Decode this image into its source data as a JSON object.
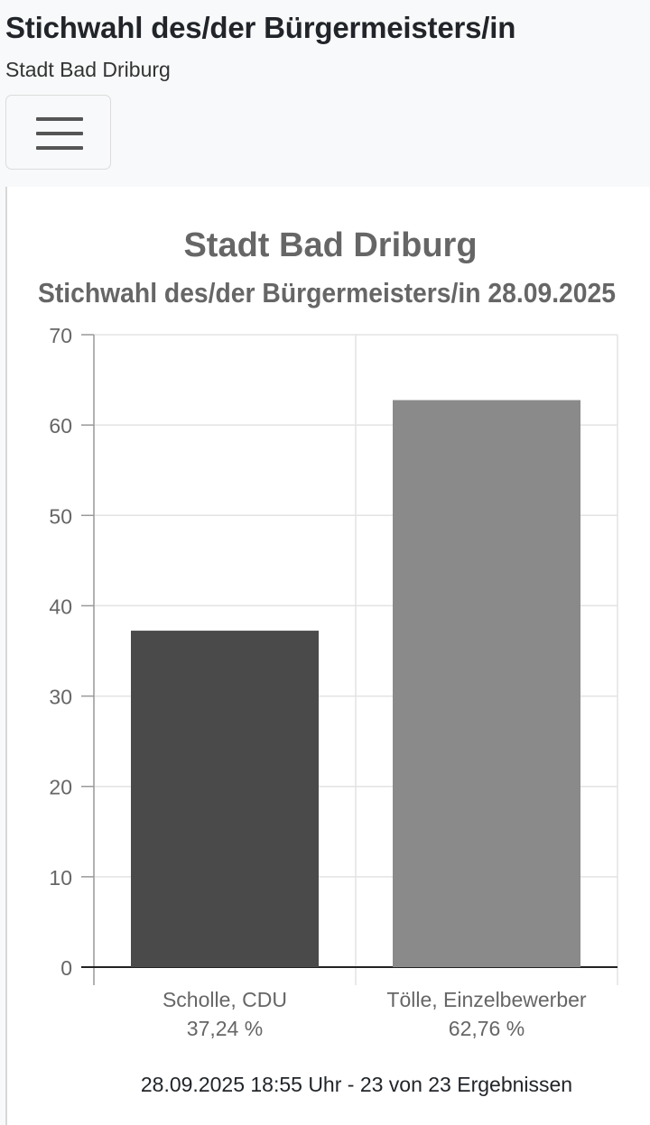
{
  "header": {
    "title": "Stichwahl des/der Bürgermeisters/in",
    "subtitle": "Stadt Bad Driburg",
    "menu_icon": "hamburger-menu-icon"
  },
  "chart_data": {
    "type": "bar",
    "title": "Stadt Bad Driburg",
    "subtitle": "Stichwahl des/der Bürgermeisters/in 28.09.2025",
    "categories": [
      "Scholle, CDU",
      "Tölle, Einzelbewerber"
    ],
    "category_percent_labels": [
      "37,24 %",
      "62,76 %"
    ],
    "values": [
      37.24,
      62.76
    ],
    "colors": [
      "#4a4a4a",
      "#8a8a8a"
    ],
    "ylim": [
      0,
      70
    ],
    "yticks": [
      0,
      10,
      20,
      30,
      40,
      50,
      60,
      70
    ],
    "grid": true,
    "xlabel": "",
    "ylabel": ""
  },
  "footer": {
    "status": "28.09.2025 18:55 Uhr - 23 von 23 Ergebnissen"
  }
}
